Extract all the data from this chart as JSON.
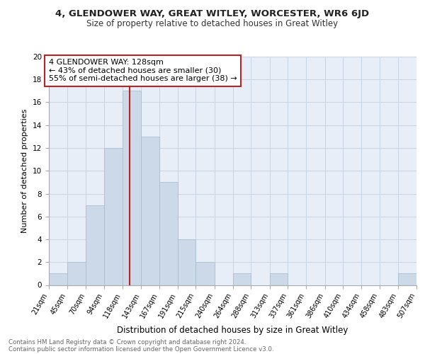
{
  "title1": "4, GLENDOWER WAY, GREAT WITLEY, WORCESTER, WR6 6JD",
  "title2": "Size of property relative to detached houses in Great Witley",
  "xlabel": "Distribution of detached houses by size in Great Witley",
  "ylabel": "Number of detached properties",
  "bin_edges": [
    21,
    45,
    70,
    94,
    118,
    143,
    167,
    191,
    215,
    240,
    264,
    288,
    313,
    337,
    361,
    386,
    410,
    434,
    458,
    483,
    507
  ],
  "bin_labels": [
    "21sqm",
    "45sqm",
    "70sqm",
    "94sqm",
    "118sqm",
    "143sqm",
    "167sqm",
    "191sqm",
    "215sqm",
    "240sqm",
    "264sqm",
    "288sqm",
    "313sqm",
    "337sqm",
    "361sqm",
    "386sqm",
    "410sqm",
    "434sqm",
    "458sqm",
    "483sqm",
    "507sqm"
  ],
  "counts": [
    1,
    2,
    7,
    12,
    17,
    13,
    9,
    4,
    2,
    0,
    1,
    0,
    1,
    0,
    0,
    0,
    0,
    0,
    0,
    1
  ],
  "bar_color": "#ccd9e8",
  "bar_edgecolor": "#a8bfd0",
  "property_size": 128,
  "vline_color": "#bb2222",
  "annotation_line1": "4 GLENDOWER WAY: 128sqm",
  "annotation_line2": "← 43% of detached houses are smaller (30)",
  "annotation_line3": "55% of semi-detached houses are larger (38) →",
  "annotation_box_color": "#ffffff",
  "annotation_box_edgecolor": "#bb2222",
  "ylim": [
    0,
    20
  ],
  "yticks": [
    0,
    2,
    4,
    6,
    8,
    10,
    12,
    14,
    16,
    18,
    20
  ],
  "grid_color": "#c8d4e4",
  "footer_text1": "Contains HM Land Registry data © Crown copyright and database right 2024.",
  "footer_text2": "Contains public sector information licensed under the Open Government Licence v3.0.",
  "background_color": "#e8eef8"
}
